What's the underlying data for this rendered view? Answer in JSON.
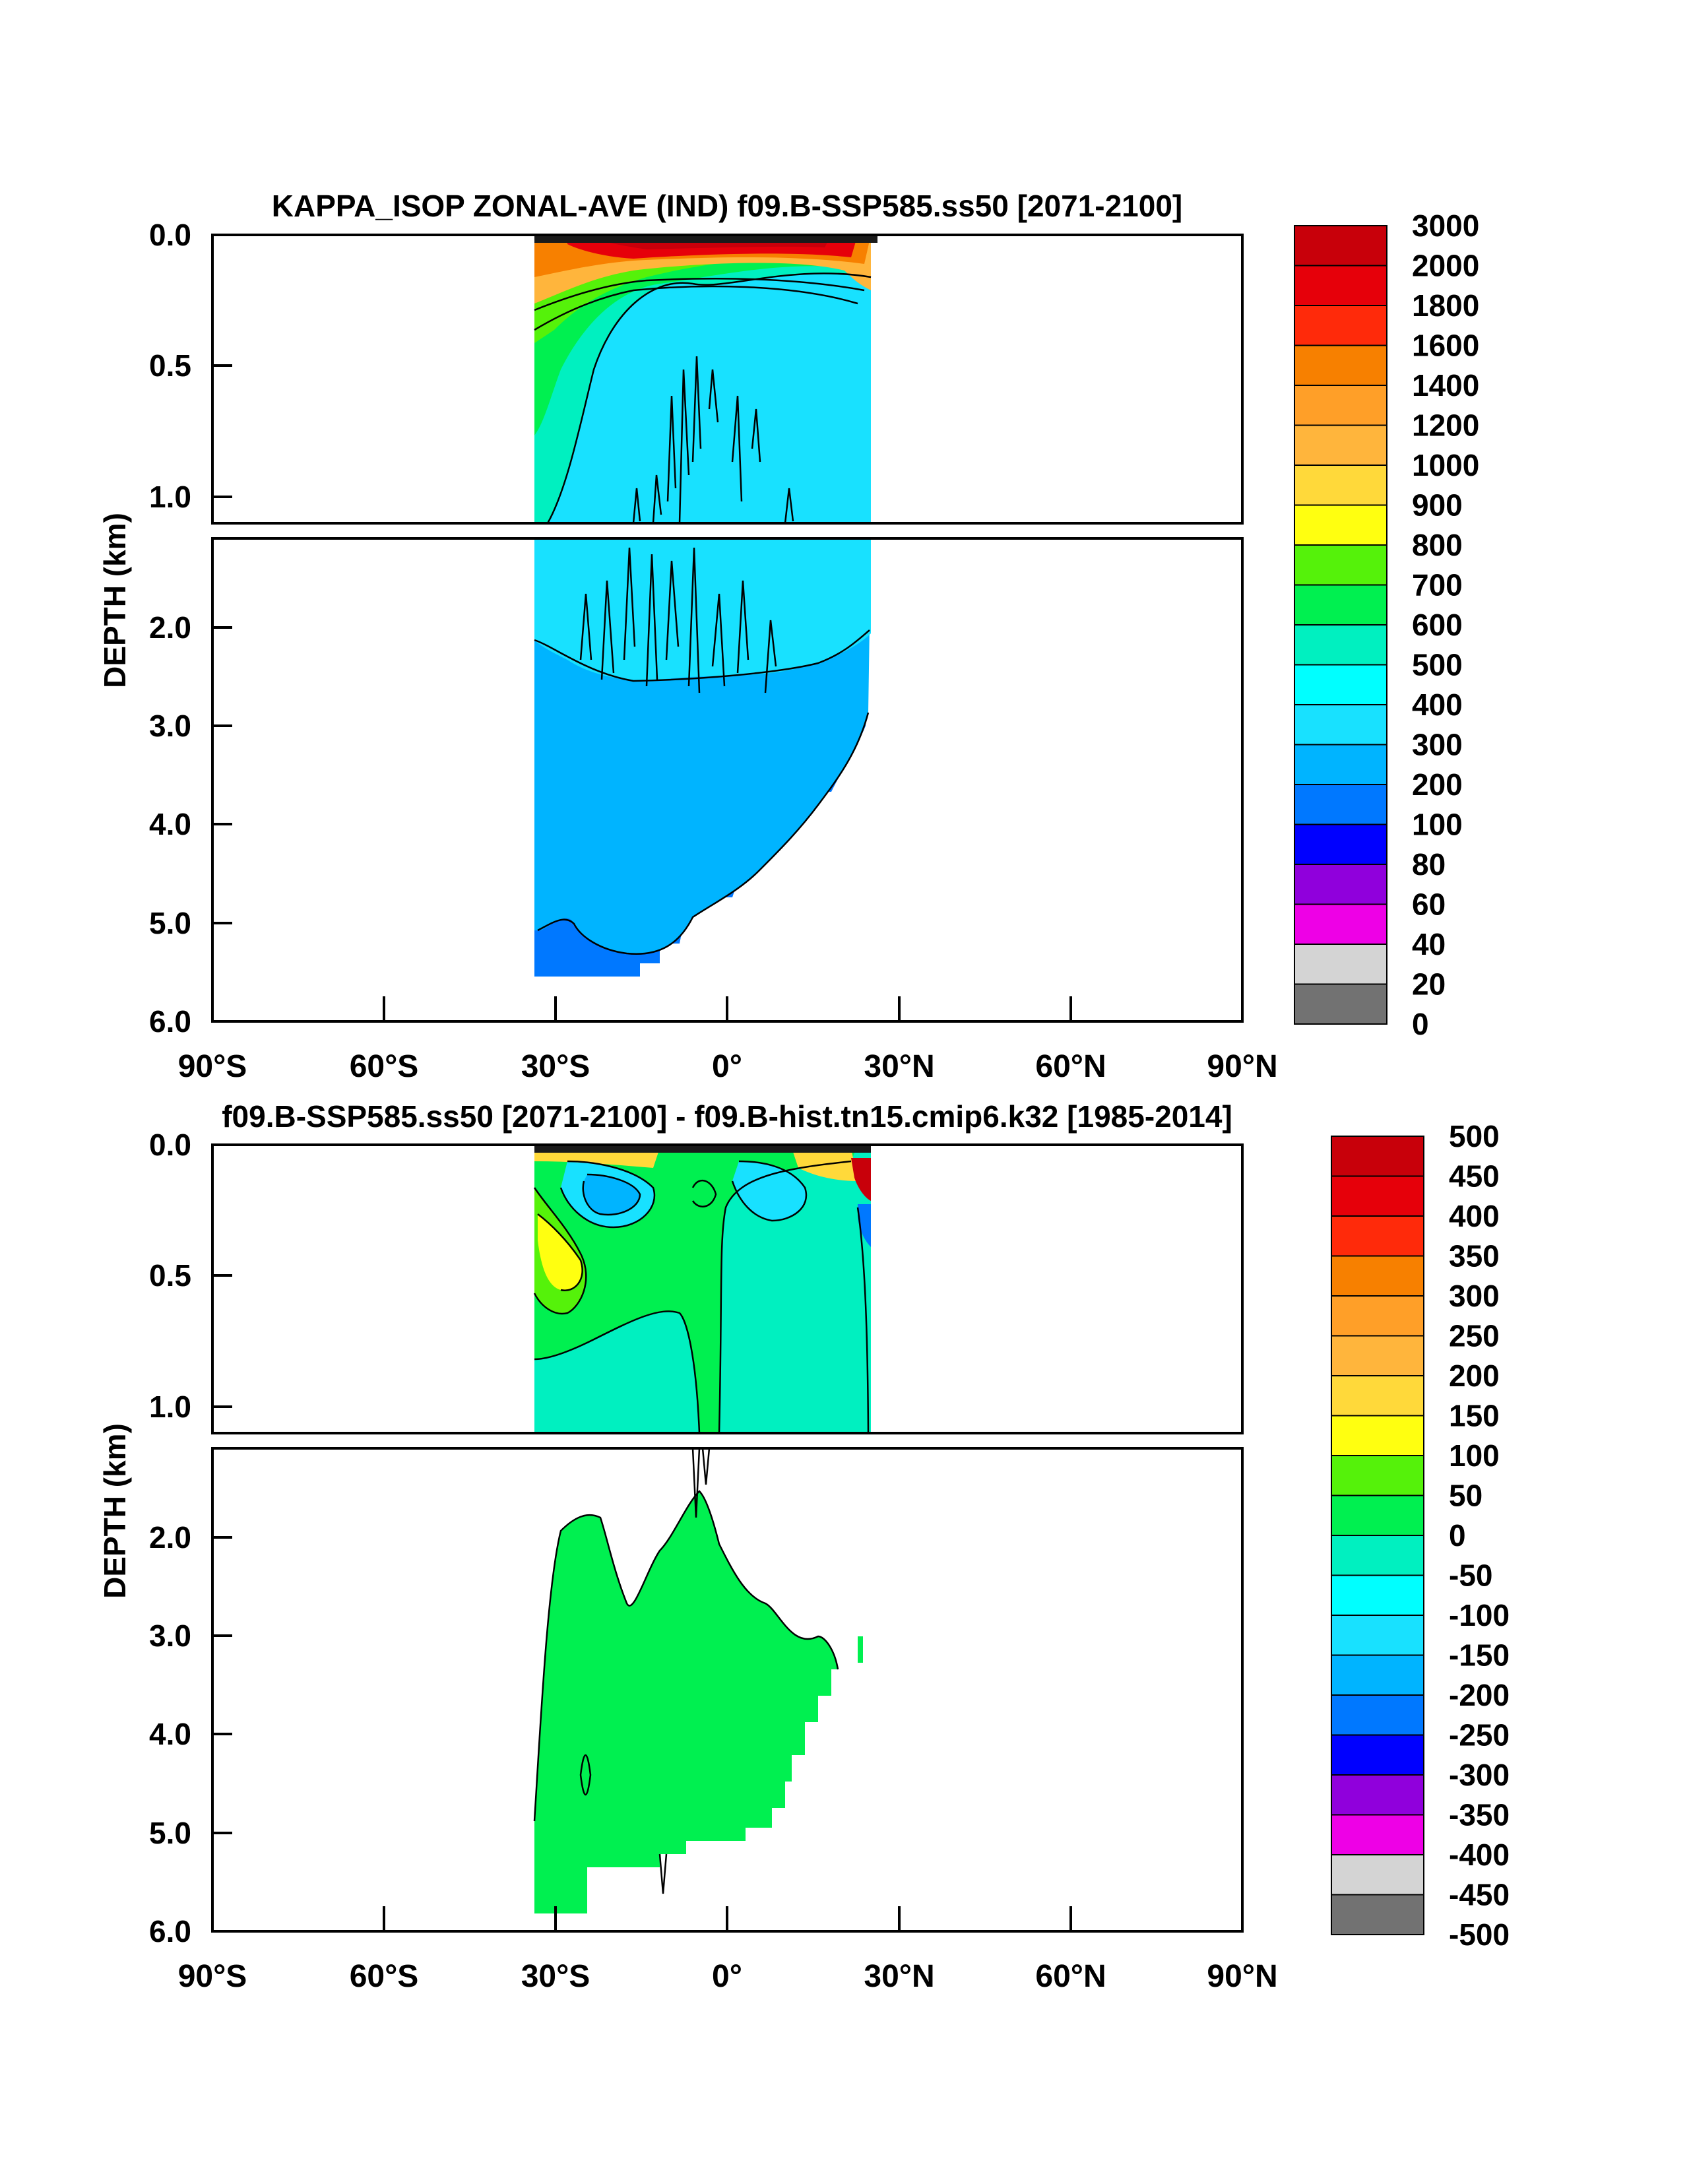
{
  "chart_data": [
    {
      "type": "contour",
      "title": "KAPPA_ISOP ZONAL-AVE (IND) f09.B-SSP585.ss50 [2071-2100]",
      "ylabel": "DEPTH (km)",
      "xlabel": "",
      "xlim": [
        -90,
        90
      ],
      "ylim": [
        0,
        6
      ],
      "x_tick_labels": [
        "90°S",
        "60°S",
        "30°S",
        "0°",
        "30°N",
        "60°N",
        "90°N"
      ],
      "x_ticks": [
        -90,
        -60,
        -30,
        0,
        30,
        60,
        90
      ],
      "upper_y_tick_labels": [
        "0.0",
        "0.5",
        "1.0"
      ],
      "upper_y_ticks": [
        0,
        0.5,
        1.0
      ],
      "lower_y_tick_labels": [
        "2.0",
        "3.0",
        "4.0",
        "5.0",
        "6.0"
      ],
      "lower_y_ticks": [
        2,
        3,
        4,
        5,
        6
      ],
      "break_depth_km": 1.1,
      "data_extent_lat": [
        -34,
        25
      ],
      "colorbar_levels": [
        "3000",
        "2000",
        "1800",
        "1600",
        "1400",
        "1200",
        "1000",
        "900",
        "800",
        "700",
        "600",
        "500",
        "400",
        "300",
        "200",
        "100",
        "80",
        "60",
        "40",
        "20",
        "0"
      ],
      "colorbar_colors": [
        "#c8000a",
        "#e6000a",
        "#ff2a0a",
        "#f78000",
        "#ff9f28",
        "#ffb53c",
        "#ffd93a",
        "#ffff10",
        "#55f20a",
        "#00f050",
        "#00f0c0",
        "#00ffff",
        "#18e1ff",
        "#00b4ff",
        "#0078ff",
        "#0000ff",
        "#9000dc",
        "#ee00e6",
        "#d4d4d4",
        "#727272"
      ]
    },
    {
      "type": "contour",
      "title": "f09.B-SSP585.ss50 [2071-2100] - f09.B-hist.tn15.cmip6.k32 [1985-2014]",
      "ylabel": "DEPTH (km)",
      "xlabel": "",
      "xlim": [
        -90,
        90
      ],
      "ylim": [
        0,
        6
      ],
      "x_tick_labels": [
        "90°S",
        "60°S",
        "30°S",
        "0°",
        "30°N",
        "60°N",
        "90°N"
      ],
      "x_ticks": [
        -90,
        -60,
        -30,
        0,
        30,
        60,
        90
      ],
      "upper_y_tick_labels": [
        "0.0",
        "0.5",
        "1.0"
      ],
      "upper_y_ticks": [
        0,
        0.5,
        1.0
      ],
      "lower_y_tick_labels": [
        "2.0",
        "3.0",
        "4.0",
        "5.0",
        "6.0"
      ],
      "lower_y_ticks": [
        2,
        3,
        4,
        5,
        6
      ],
      "break_depth_km": 1.1,
      "data_extent_lat": [
        -34,
        25
      ],
      "colorbar_levels": [
        "500",
        "450",
        "400",
        "350",
        "300",
        "250",
        "200",
        "150",
        "100",
        "50",
        "0",
        "-50",
        "-100",
        "-150",
        "-200",
        "-250",
        "-300",
        "-350",
        "-400",
        "-450",
        "-500"
      ],
      "colorbar_colors": [
        "#c8000a",
        "#e6000a",
        "#ff2a0a",
        "#f78000",
        "#ff9f28",
        "#ffb53c",
        "#ffd93a",
        "#ffff10",
        "#55f20a",
        "#00f050",
        "#00f0c0",
        "#00ffff",
        "#18e1ff",
        "#00b4ff",
        "#0078ff",
        "#0000ff",
        "#9000dc",
        "#ee00e6",
        "#d4d4d4",
        "#727272"
      ]
    }
  ]
}
